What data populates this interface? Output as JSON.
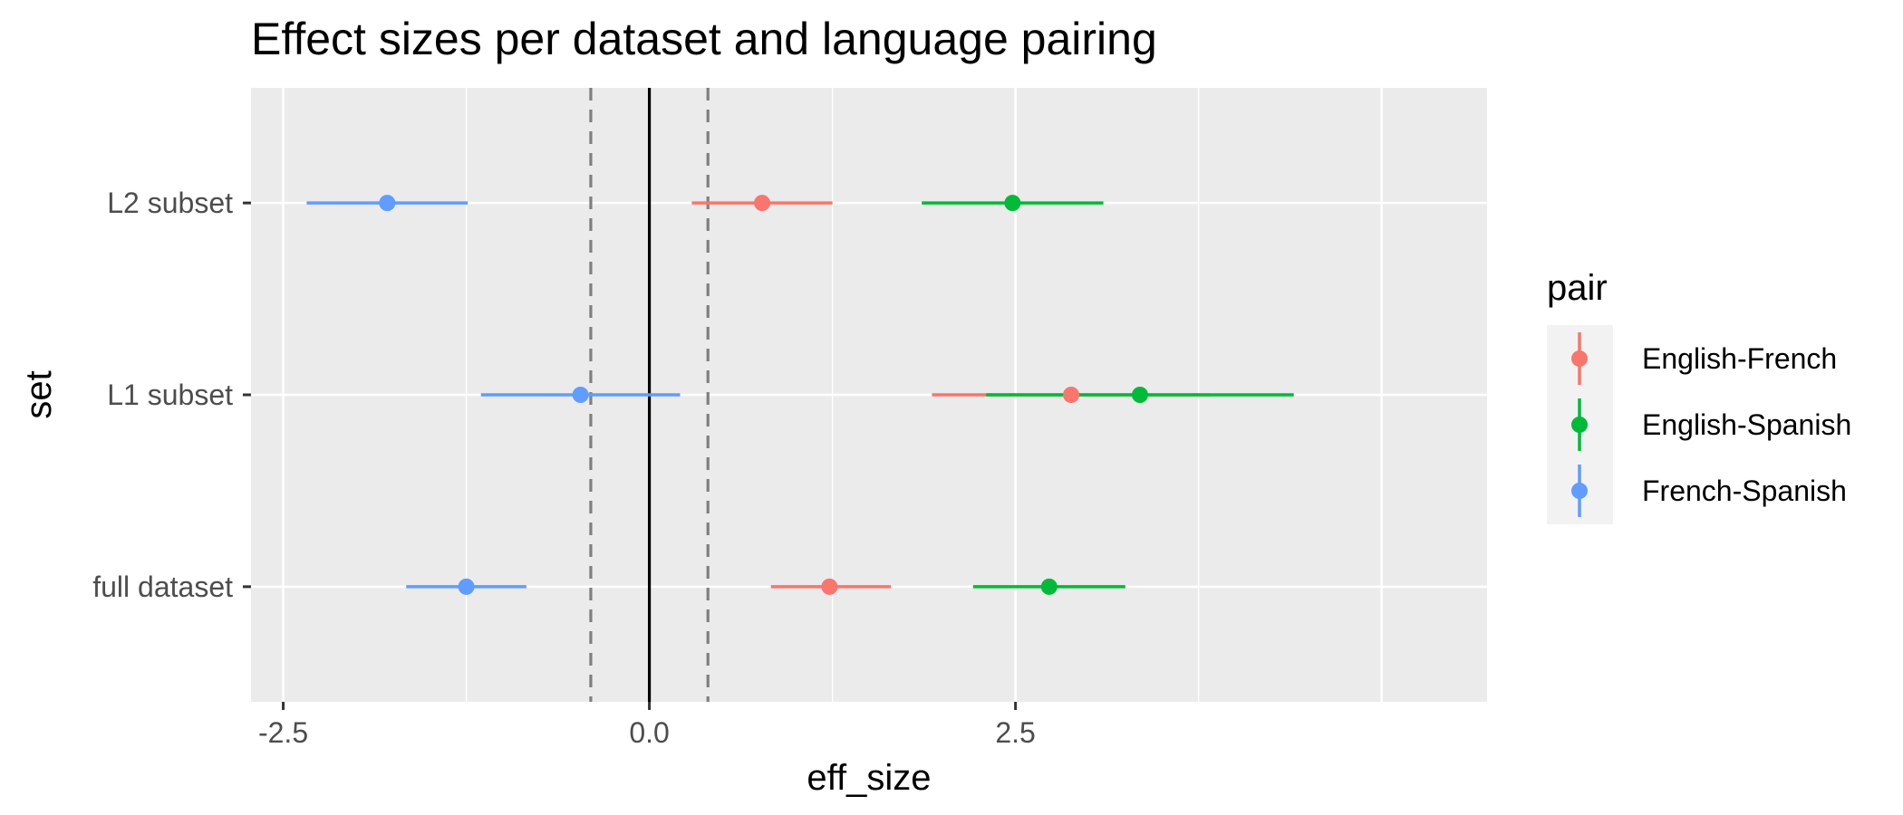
{
  "chart_data": {
    "type": "scatter",
    "title": "Effect sizes per dataset and language pairing",
    "xlabel": "eff_size",
    "ylabel": "set",
    "xlim": [
      -2.72,
      5.72
    ],
    "x_ticks": [
      {
        "value": -2.5,
        "label": "-2.5"
      },
      {
        "value": 0.0,
        "label": "0.0"
      },
      {
        "value": 2.5,
        "label": "2.5"
      }
    ],
    "categories": [
      "full dataset",
      "L1 subset",
      "L2 subset"
    ],
    "reference_lines": {
      "solid": 0.0,
      "dashed": [
        -0.4,
        0.4
      ]
    },
    "grid": true,
    "legend_position": "right",
    "legend_title": "pair",
    "series": [
      {
        "name": "English-French",
        "color": "#F8766D",
        "points": [
          {
            "category": "full dataset",
            "x": 1.23,
            "low": 0.83,
            "high": 1.65
          },
          {
            "category": "L1 subset",
            "x": 2.88,
            "low": 1.93,
            "high": 3.83
          },
          {
            "category": "L2 subset",
            "x": 0.77,
            "low": 0.29,
            "high": 1.25
          }
        ]
      },
      {
        "name": "English-Spanish",
        "color": "#00BA38",
        "points": [
          {
            "category": "full dataset",
            "x": 2.73,
            "low": 2.21,
            "high": 3.25
          },
          {
            "category": "L1 subset",
            "x": 3.35,
            "low": 2.3,
            "high": 4.4
          },
          {
            "category": "L2 subset",
            "x": 2.48,
            "low": 1.86,
            "high": 3.1
          }
        ]
      },
      {
        "name": "French-Spanish",
        "color": "#619CFF",
        "points": [
          {
            "category": "full dataset",
            "x": -1.25,
            "low": -1.66,
            "high": -0.84
          },
          {
            "category": "L1 subset",
            "x": -0.47,
            "low": -1.15,
            "high": 0.21
          },
          {
            "category": "L2 subset",
            "x": -1.79,
            "low": -2.34,
            "high": -1.24
          }
        ]
      }
    ]
  }
}
